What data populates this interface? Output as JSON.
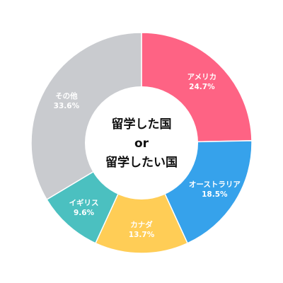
{
  "chart_data": {
    "type": "pie",
    "donut": true,
    "center_label": [
      "留学した国",
      "or",
      "留学したい国"
    ],
    "slices": [
      {
        "label": "アメリカ",
        "value": 24.7,
        "value_text": "24.7%",
        "color": "#fe6384"
      },
      {
        "label": "オーストラリア",
        "value": 18.5,
        "value_text": "18.5%",
        "color": "#36a2eb"
      },
      {
        "label": "カナダ",
        "value": 13.7,
        "value_text": "13.7%",
        "color": "#ffcd56"
      },
      {
        "label": "イギリス",
        "value": 9.6,
        "value_text": "9.6%",
        "color": "#4bc0c0"
      },
      {
        "label": "その他",
        "value": 33.6,
        "value_text": "33.6%",
        "color": "#c9cbcf"
      }
    ]
  }
}
